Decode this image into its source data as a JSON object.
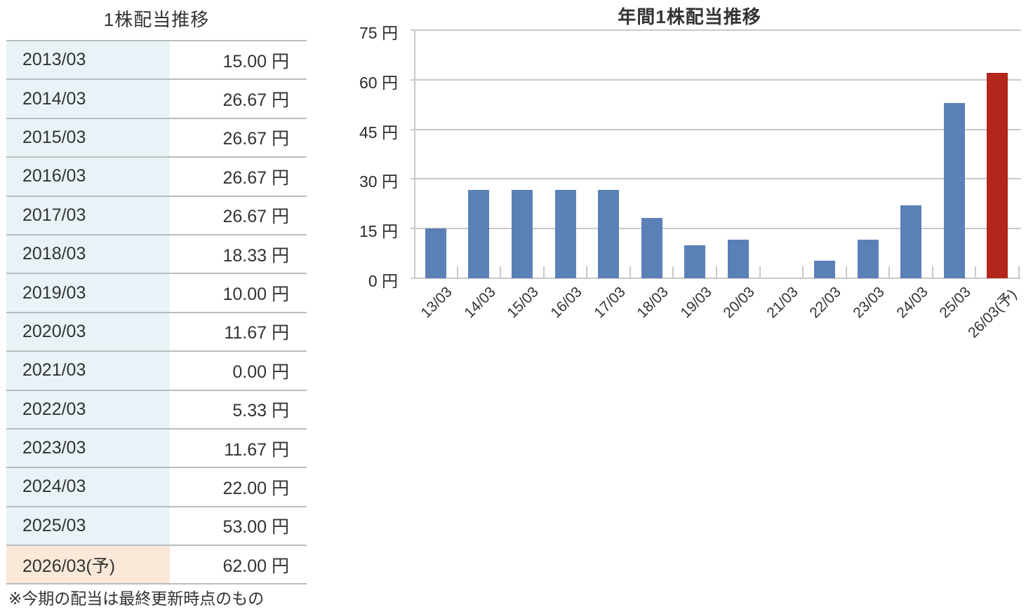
{
  "table": {
    "title": "1株配当推移",
    "rows": [
      {
        "period": "2013/03",
        "value": "15.00 円"
      },
      {
        "period": "2014/03",
        "value": "26.67 円"
      },
      {
        "period": "2015/03",
        "value": "26.67 円"
      },
      {
        "period": "2016/03",
        "value": "26.67 円"
      },
      {
        "period": "2017/03",
        "value": "26.67 円"
      },
      {
        "period": "2018/03",
        "value": "18.33 円"
      },
      {
        "period": "2019/03",
        "value": "10.00 円"
      },
      {
        "period": "2020/03",
        "value": "11.67 円"
      },
      {
        "period": "2021/03",
        "value": "0.00 円"
      },
      {
        "period": "2022/03",
        "value": "5.33 円"
      },
      {
        "period": "2023/03",
        "value": "11.67 円"
      },
      {
        "period": "2024/03",
        "value": "22.00 円"
      },
      {
        "period": "2025/03",
        "value": "53.00 円"
      },
      {
        "period": "2026/03(予)",
        "value": "62.00 円"
      }
    ],
    "footnote": "※今期の配当は最終更新時点のもの"
  },
  "chart": {
    "title": "年間1株配当推移",
    "y_ticks": [
      "75 円",
      "60 円",
      "45 円",
      "30 円",
      "15 円",
      "0 円"
    ]
  },
  "chart_data": {
    "type": "bar",
    "title": "年間1株配当推移",
    "categories": [
      "13/03",
      "14/03",
      "15/03",
      "16/03",
      "17/03",
      "18/03",
      "19/03",
      "20/03",
      "21/03",
      "22/03",
      "23/03",
      "24/03",
      "25/03",
      "26/03(予)"
    ],
    "values": [
      15.0,
      26.67,
      26.67,
      26.67,
      26.67,
      18.33,
      10.0,
      11.67,
      0.0,
      5.33,
      11.67,
      22.0,
      53.0,
      62.0
    ],
    "unit": "円",
    "xlabel": "",
    "ylabel": "",
    "ylim": [
      0,
      75
    ],
    "ytick_interval": 15,
    "grid": true,
    "legend": "none",
    "forecast_index": 13,
    "bar_color_actual": "#5b80b8",
    "bar_color_forecast": "#b2261b"
  },
  "colors": {
    "bar_blue": "#5b80b8",
    "bar_red": "#b2261b",
    "cell_blue": "#e9f3f7",
    "cell_orange": "#fae8d8",
    "border": "#b9bcbe",
    "grid": "#c9c9c9",
    "text": "#333333"
  }
}
